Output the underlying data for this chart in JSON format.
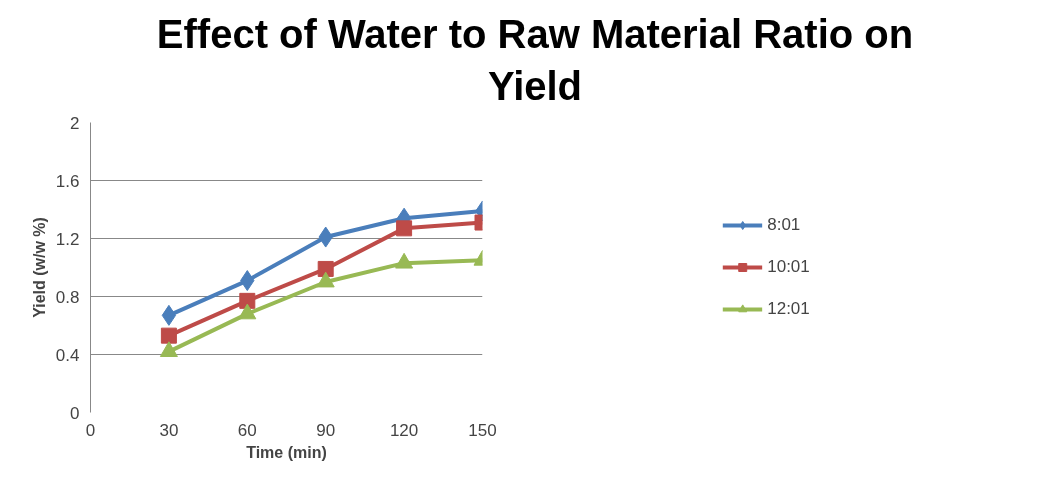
{
  "chart_data": {
    "type": "line",
    "title": "Effect of Water to Raw Material Ratio on Yield",
    "xlabel": "Time (min)",
    "ylabel": "Yield (w/w %)",
    "x": [
      30,
      60,
      90,
      120,
      150
    ],
    "series": [
      {
        "name": "8:01",
        "color": "#4a7ebb",
        "marker": "diamond",
        "values": [
          0.67,
          0.91,
          1.21,
          1.34,
          1.39
        ]
      },
      {
        "name": "10:01",
        "color": "#be4b48",
        "marker": "square",
        "values": [
          0.53,
          0.77,
          0.99,
          1.27,
          1.31
        ]
      },
      {
        "name": "12:01",
        "color": "#98b954",
        "marker": "triangle",
        "values": [
          0.42,
          0.68,
          0.9,
          1.03,
          1.05
        ]
      }
    ],
    "xlim": [
      0,
      150
    ],
    "xticks": [
      0,
      30,
      60,
      90,
      120,
      150
    ],
    "ylim": [
      0,
      2
    ],
    "yticks": [
      0,
      0.4,
      0.8,
      1.2,
      1.6,
      2
    ],
    "grid": "y",
    "legend": "right",
    "line_style": "solid"
  }
}
